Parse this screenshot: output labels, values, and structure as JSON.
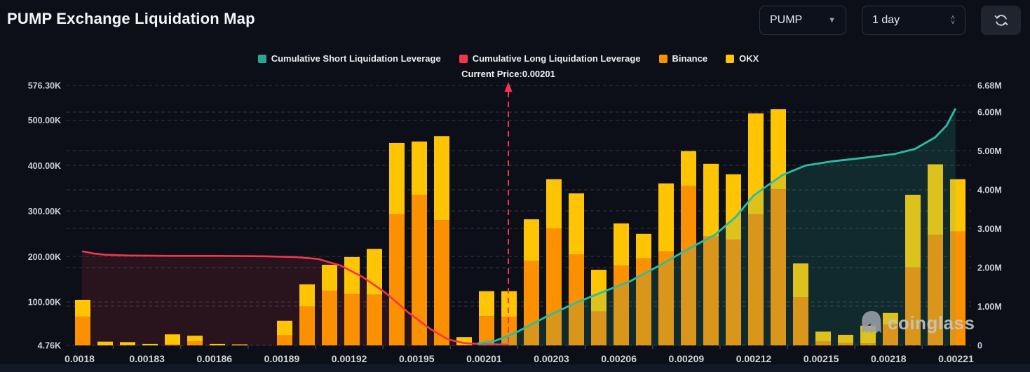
{
  "header": {
    "title": "PUMP Exchange Liquidation Map"
  },
  "controls": {
    "symbol": {
      "value": "PUMP",
      "caret": "▼"
    },
    "interval": {
      "value": "1 day",
      "spin_up": "˄",
      "spin_down": "˅"
    },
    "refresh_icon": "refresh"
  },
  "legend": [
    {
      "label": "Cumulative Short Liquidation Leverage",
      "color": "#2aa693"
    },
    {
      "label": "Cumulative Long Liquidation Leverage",
      "color": "#f3364b"
    },
    {
      "label": "Binance",
      "color": "#fb9000"
    },
    {
      "label": "OKX",
      "color": "#ffc403"
    }
  ],
  "annotation": {
    "current_price_label": "Current Price:0.00201",
    "current_price_value": "0.00201"
  },
  "watermark": {
    "text": "coinglass"
  },
  "chart_data": {
    "type": "mixed-bar-line",
    "title": "PUMP Exchange Liquidation Map",
    "x_labels": [
      "0.0018",
      "0.00183",
      "0.00186",
      "0.00189",
      "0.00192",
      "0.00195",
      "0.00201",
      "0.00203",
      "0.00206",
      "0.00209",
      "0.00212",
      "0.00215",
      "0.00218",
      "0.00221"
    ],
    "left_axis": {
      "unit": "K",
      "min": 4.76,
      "max": 576.3,
      "ticks": [
        {
          "label": "576.30K",
          "value": 576.3
        },
        {
          "label": "500.00K",
          "value": 500
        },
        {
          "label": "400.00K",
          "value": 400
        },
        {
          "label": "300.00K",
          "value": 300
        },
        {
          "label": "200.00K",
          "value": 200
        },
        {
          "label": "100.00K",
          "value": 100
        },
        {
          "label": "4.76K",
          "value": 4.76
        }
      ]
    },
    "right_axis": {
      "unit": "M",
      "min": 0,
      "max": 6.68,
      "ticks": [
        {
          "label": "6.68M",
          "value": 6.68
        },
        {
          "label": "6.00M",
          "value": 6
        },
        {
          "label": "5.00M",
          "value": 5
        },
        {
          "label": "4.00M",
          "value": 4
        },
        {
          "label": "3.00M",
          "value": 3
        },
        {
          "label": "2.00M",
          "value": 2
        },
        {
          "label": "1.00M",
          "value": 1
        },
        {
          "label": "0",
          "value": 0
        }
      ]
    },
    "bars": {
      "unit": "K",
      "series": [
        {
          "name": "Binance",
          "color": "#fb9000",
          "values": [
            68,
            4,
            5,
            4,
            7,
            14,
            4,
            3,
            0,
            27,
            90,
            125,
            118,
            116,
            293,
            336,
            280,
            6,
            69,
            68,
            190,
            262,
            205,
            79,
            180,
            196,
            211,
            356,
            244,
            237,
            293,
            348,
            111,
            13,
            10,
            9,
            51,
            176,
            248,
            255
          ]
        },
        {
          "name": "OKX",
          "color": "#ffc403",
          "values": [
            37,
            9,
            7,
            4,
            22,
            12,
            4,
            4,
            0,
            32,
            49,
            57,
            81,
            101,
            157,
            117,
            185,
            17,
            55,
            56,
            92,
            108,
            134,
            92,
            93,
            54,
            150,
            76,
            160,
            144,
            222,
            176,
            74,
            22,
            18,
            39,
            25,
            160,
            155,
            115
          ]
        }
      ]
    },
    "lines": {
      "unit": "M",
      "long": {
        "name": "Cumulative Long Liquidation Leverage",
        "color": "#f3364b",
        "fill": "rgba(243,54,75,0.13)",
        "points": [
          [
            -0.03,
            2.42
          ],
          [
            0.5,
            2.36
          ],
          [
            1,
            2.33
          ],
          [
            2,
            2.31
          ],
          [
            4,
            2.3
          ],
          [
            6,
            2.3
          ],
          [
            8,
            2.29
          ],
          [
            9.5,
            2.27
          ],
          [
            10.5,
            2.22
          ],
          [
            11.5,
            2.05
          ],
          [
            12.5,
            1.75
          ],
          [
            13.5,
            1.35
          ],
          [
            14.5,
            0.85
          ],
          [
            15.5,
            0.42
          ],
          [
            16.3,
            0.15
          ],
          [
            17,
            0.06
          ],
          [
            18,
            0.03
          ],
          [
            19,
            0.02
          ]
        ]
      },
      "short": {
        "name": "Cumulative Short Liquidation Leverage",
        "color": "#2abda5",
        "fill": "rgba(42,189,165,0.16)",
        "points": [
          [
            17.6,
            0.05
          ],
          [
            18.4,
            0.12
          ],
          [
            19.3,
            0.33
          ],
          [
            20.7,
            0.75
          ],
          [
            22,
            1.1
          ],
          [
            23.2,
            1.38
          ],
          [
            24.4,
            1.65
          ],
          [
            25.7,
            2.05
          ],
          [
            26.9,
            2.45
          ],
          [
            28.2,
            2.85
          ],
          [
            29.1,
            3.3
          ],
          [
            29.9,
            3.85
          ],
          [
            30.5,
            4.1
          ],
          [
            31.2,
            4.38
          ],
          [
            32.2,
            4.62
          ],
          [
            33.4,
            4.73
          ],
          [
            34.8,
            4.82
          ],
          [
            36.2,
            4.92
          ],
          [
            37.1,
            5.05
          ],
          [
            38,
            5.35
          ],
          [
            38.5,
            5.65
          ],
          [
            38.9,
            6.09
          ]
        ]
      }
    },
    "current_price": {
      "label": "Current Price:0.00201",
      "bar_index": 18.97,
      "line_color": "#f3364b"
    },
    "grid": {
      "color": "#272c38",
      "dashed": true,
      "legend_position": "top-center"
    }
  }
}
